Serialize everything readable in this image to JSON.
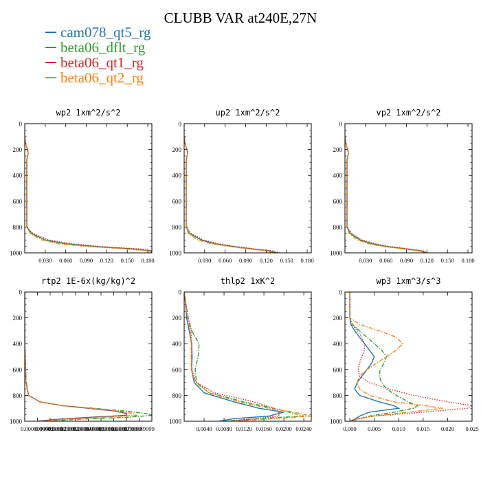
{
  "title": "CLUBB VAR at240E,27N",
  "legend": [
    {
      "name": "cam078_qt5_rg",
      "color": "#1f77b4",
      "dash": "solid"
    },
    {
      "name": "beta06_dflt_rg",
      "color": "#2ca02c",
      "dash": "dashdot"
    },
    {
      "name": "beta06_qt1_rg",
      "color": "#d62728",
      "dash": "dot"
    },
    {
      "name": "beta06_qt2_rg",
      "color": "#ff7f0e",
      "dash": "dashdot"
    }
  ],
  "chart_data": [
    {
      "type": "line",
      "title": "wp2  1xm^2/s^2",
      "xlim": [
        0,
        0.186
      ],
      "ylim": [
        1000,
        0
      ],
      "y_inverted": true,
      "xticks": [
        0.03,
        0.06,
        0.09,
        0.12,
        0.15,
        0.18
      ],
      "xtick_labels": [
        "0.030",
        "0.060",
        "0.090",
        "0.120",
        "0.150",
        "0.180"
      ],
      "yticks": [
        0,
        200,
        400,
        600,
        800,
        1000
      ],
      "ytick_labels": [
        "0",
        "200",
        "400",
        "600",
        "800",
        "1000"
      ],
      "y": [
        100,
        150,
        200,
        230,
        280,
        400,
        600,
        800,
        850,
        900,
        930,
        950,
        970,
        985,
        1000
      ],
      "series": [
        {
          "name": "cam078_qt5_rg",
          "values": [
            0.0,
            0.001,
            0.004,
            0.005,
            0.003,
            0.003,
            0.003,
            0.003,
            0.01,
            0.03,
            0.06,
            0.1,
            0.16,
            0.185,
            0.186
          ]
        },
        {
          "name": "beta06_dflt_rg",
          "values": [
            0.0,
            0.001,
            0.004,
            0.005,
            0.003,
            0.003,
            0.003,
            0.003,
            0.01,
            0.03,
            0.06,
            0.1,
            0.16,
            0.185,
            0.186
          ]
        },
        {
          "name": "beta06_qt1_rg",
          "values": [
            0.0,
            0.001,
            0.004,
            0.005,
            0.003,
            0.003,
            0.003,
            0.003,
            0.012,
            0.035,
            0.07,
            0.11,
            0.17,
            0.186,
            0.186
          ]
        },
        {
          "name": "beta06_qt2_rg",
          "values": [
            0.0,
            0.001,
            0.004,
            0.005,
            0.003,
            0.003,
            0.003,
            0.003,
            0.008,
            0.025,
            0.05,
            0.09,
            0.15,
            0.18,
            0.186
          ]
        }
      ]
    },
    {
      "type": "line",
      "title": "up2  1xm^2/s^2",
      "xlim": [
        0,
        0.186
      ],
      "ylim": [
        1000,
        0
      ],
      "y_inverted": true,
      "xticks": [
        0.03,
        0.06,
        0.09,
        0.12,
        0.15,
        0.18
      ],
      "xtick_labels": [
        "0.030",
        "0.060",
        "0.090",
        "0.120",
        "0.150",
        "0.180"
      ],
      "yticks": [
        0,
        200,
        400,
        600,
        800,
        1000
      ],
      "ytick_labels": [
        "0",
        "200",
        "400",
        "600",
        "800",
        "1000"
      ],
      "y": [
        100,
        150,
        200,
        230,
        280,
        400,
        600,
        800,
        850,
        900,
        930,
        950,
        970,
        985,
        1000
      ],
      "series": [
        {
          "name": "cam078_qt5_rg",
          "values": [
            0.0,
            0.001,
            0.004,
            0.005,
            0.003,
            0.003,
            0.003,
            0.003,
            0.008,
            0.025,
            0.045,
            0.07,
            0.1,
            0.125,
            0.135
          ]
        },
        {
          "name": "beta06_dflt_rg",
          "values": [
            0.0,
            0.001,
            0.004,
            0.005,
            0.003,
            0.003,
            0.003,
            0.003,
            0.008,
            0.025,
            0.045,
            0.07,
            0.1,
            0.125,
            0.135
          ]
        },
        {
          "name": "beta06_qt1_rg",
          "values": [
            0.0,
            0.001,
            0.004,
            0.005,
            0.003,
            0.003,
            0.003,
            0.003,
            0.01,
            0.028,
            0.05,
            0.075,
            0.105,
            0.13,
            0.14
          ]
        },
        {
          "name": "beta06_qt2_rg",
          "values": [
            0.0,
            0.001,
            0.004,
            0.005,
            0.003,
            0.003,
            0.003,
            0.003,
            0.006,
            0.02,
            0.04,
            0.065,
            0.095,
            0.12,
            0.13
          ]
        }
      ]
    },
    {
      "type": "line",
      "title": "vp2  1xm^2/s^2",
      "xlim": [
        0,
        0.186
      ],
      "ylim": [
        1000,
        0
      ],
      "y_inverted": true,
      "xticks": [
        0.03,
        0.06,
        0.09,
        0.12,
        0.15,
        0.18
      ],
      "xtick_labels": [
        "0.030",
        "0.060",
        "0.090",
        "0.120",
        "0.150",
        "0.180"
      ],
      "yticks": [
        0,
        200,
        400,
        600,
        800,
        1000
      ],
      "ytick_labels": [
        "0",
        "200",
        "400",
        "600",
        "800",
        "1000"
      ],
      "y": [
        100,
        150,
        200,
        230,
        280,
        400,
        600,
        800,
        850,
        900,
        930,
        950,
        970,
        985,
        1000
      ],
      "series": [
        {
          "name": "cam078_qt5_rg",
          "values": [
            0.0,
            0.001,
            0.004,
            0.005,
            0.003,
            0.003,
            0.003,
            0.003,
            0.008,
            0.022,
            0.04,
            0.06,
            0.09,
            0.112,
            0.12
          ]
        },
        {
          "name": "beta06_dflt_rg",
          "values": [
            0.0,
            0.001,
            0.004,
            0.005,
            0.003,
            0.003,
            0.003,
            0.003,
            0.008,
            0.022,
            0.04,
            0.06,
            0.09,
            0.112,
            0.12
          ]
        },
        {
          "name": "beta06_qt1_rg",
          "values": [
            0.0,
            0.001,
            0.004,
            0.005,
            0.003,
            0.003,
            0.003,
            0.003,
            0.01,
            0.025,
            0.045,
            0.065,
            0.095,
            0.115,
            0.12
          ]
        },
        {
          "name": "beta06_qt2_rg",
          "values": [
            0.0,
            0.001,
            0.004,
            0.005,
            0.003,
            0.003,
            0.003,
            0.003,
            0.006,
            0.018,
            0.035,
            0.055,
            0.085,
            0.108,
            0.118
          ]
        }
      ]
    },
    {
      "type": "line",
      "title": "rtp2  1E-6x(kg/kg)^2",
      "xlim": [
        0,
        9.99999e-05
      ],
      "ylim": [
        1000,
        0
      ],
      "y_inverted": true,
      "xticks": [
        1e-05,
        2e-05,
        3e-05,
        4e-05,
        5e-05,
        6e-05,
        7e-05,
        8e-05,
        9e-05
      ],
      "xtick_labels": [
        "0.0000099999",
        "0.000019999",
        "0.000029999",
        "0.000039999",
        "0.000049999",
        "0.000059999",
        "0.000069999",
        "0.000079999",
        "0.000089999"
      ],
      "yticks": [
        0,
        200,
        400,
        600,
        800,
        1000
      ],
      "ytick_labels": [
        "0",
        "200",
        "400",
        "600",
        "800",
        "1000"
      ],
      "y": [
        0,
        400,
        700,
        800,
        850,
        880,
        900,
        920,
        940,
        955,
        970,
        985,
        1000
      ],
      "series": [
        {
          "name": "cam078_qt5_rg",
          "values": [
            0.0,
            0.0,
            1e-06,
            3e-06,
            1.2e-05,
            3e-05,
            5e-05,
            7e-05,
            8e-05,
            8e-05,
            5e-05,
            2.5e-05,
            1e-05
          ]
        },
        {
          "name": "beta06_dflt_rg",
          "values": [
            0.0,
            0.0,
            1e-06,
            3e-06,
            1.2e-05,
            3e-05,
            5.5e-05,
            7.8e-05,
            9.5e-05,
            0.0001,
            8e-05,
            4e-05,
            2e-05
          ]
        },
        {
          "name": "beta06_qt1_rg",
          "values": [
            0.0,
            0.0,
            1e-06,
            3e-06,
            1.2e-05,
            3e-05,
            5e-05,
            7e-05,
            8e-05,
            8e-05,
            5e-05,
            2.5e-05,
            1e-05
          ]
        },
        {
          "name": "beta06_qt2_rg",
          "values": [
            0.0,
            0.0,
            1e-06,
            3e-06,
            1.2e-05,
            3e-05,
            5.2e-05,
            7.3e-05,
            8.5e-05,
            8.8e-05,
            6e-05,
            3e-05,
            1.2e-05
          ]
        }
      ]
    },
    {
      "type": "line",
      "title": "thlp2  1xK^2",
      "xlim": [
        0,
        0.0255
      ],
      "ylim": [
        1000,
        0
      ],
      "y_inverted": true,
      "xticks": [
        0.004,
        0.008,
        0.012,
        0.016,
        0.02,
        0.024
      ],
      "xtick_labels": [
        "0.0040",
        "0.0080",
        "0.0120",
        "0.0160",
        "0.0200",
        "0.0240"
      ],
      "yticks": [
        0,
        200,
        400,
        600,
        800,
        1000
      ],
      "ytick_labels": [
        "0",
        "200",
        "400",
        "600",
        "800",
        "1000"
      ],
      "y": [
        0,
        100,
        200,
        300,
        400,
        500,
        600,
        700,
        780,
        850,
        900,
        930,
        960,
        980,
        1000
      ],
      "series": [
        {
          "name": "cam078_qt5_rg",
          "values": [
            0.0,
            0.0003,
            0.0005,
            0.001,
            0.0015,
            0.0016,
            0.0015,
            0.002,
            0.004,
            0.01,
            0.015,
            0.02,
            0.017,
            0.01,
            0.007
          ]
        },
        {
          "name": "beta06_dflt_rg",
          "values": [
            0.0,
            0.0004,
            0.0008,
            0.0015,
            0.003,
            0.0028,
            0.0022,
            0.0025,
            0.005,
            0.012,
            0.018,
            0.021,
            0.024,
            0.015,
            0.008
          ]
        },
        {
          "name": "beta06_qt1_rg",
          "values": [
            0.0,
            0.0004,
            0.0008,
            0.0014,
            0.0015,
            0.0015,
            0.0015,
            0.0025,
            0.006,
            0.014,
            0.018,
            0.019,
            0.019,
            0.014,
            0.009
          ]
        },
        {
          "name": "beta06_qt2_rg",
          "values": [
            0.0,
            0.0003,
            0.0007,
            0.0012,
            0.0014,
            0.0014,
            0.0014,
            0.0022,
            0.005,
            0.011,
            0.017,
            0.022,
            0.0255,
            0.018,
            0.01
          ]
        }
      ]
    },
    {
      "type": "line",
      "title": "wp3  1xm^3/s^3",
      "xlim": [
        -0.001,
        0.025
      ],
      "ylim": [
        1000,
        0
      ],
      "y_inverted": true,
      "xticks": [
        0.0,
        0.005,
        0.01,
        0.015,
        0.02,
        0.025
      ],
      "xtick_labels": [
        "0.000",
        "0.005",
        "0.010",
        "0.015",
        "0.020",
        "0.025"
      ],
      "yticks": [
        0,
        200,
        400,
        600,
        800,
        1000
      ],
      "ytick_labels": [
        "0",
        "200",
        "400",
        "600",
        "800",
        "1000"
      ],
      "y": [
        0,
        100,
        200,
        250,
        300,
        350,
        400,
        450,
        500,
        550,
        600,
        650,
        700,
        750,
        800,
        850,
        880,
        900,
        930,
        960,
        985,
        1000
      ],
      "series": [
        {
          "name": "cam078_qt5_rg",
          "values": [
            0.0,
            0.0,
            0.0,
            0.0002,
            0.001,
            0.002,
            0.003,
            0.004,
            0.005,
            0.0045,
            0.0035,
            0.0025,
            0.0015,
            0.001,
            0.002,
            0.006,
            0.009,
            0.01,
            0.004,
            0.002,
            0.001,
            0.0
          ]
        },
        {
          "name": "beta06_dflt_rg",
          "values": [
            0.0,
            0.0,
            0.0,
            0.0005,
            0.002,
            0.0035,
            0.005,
            0.0065,
            0.0075,
            0.007,
            0.0062,
            0.006,
            0.0065,
            0.0075,
            0.0095,
            0.012,
            0.0138,
            0.013,
            0.009,
            0.004,
            0.0015,
            0.0
          ]
        },
        {
          "name": "beta06_qt1_rg",
          "values": [
            0.0,
            0.0,
            0.0,
            0.0005,
            0.0015,
            0.0025,
            0.003,
            0.003,
            0.0025,
            0.002,
            0.0017,
            0.002,
            0.004,
            0.008,
            0.013,
            0.02,
            0.025,
            0.024,
            0.015,
            0.005,
            0.001,
            0.0
          ]
        },
        {
          "name": "beta06_qt2_rg",
          "values": [
            0.0,
            0.0,
            0.0,
            0.002,
            0.006,
            0.0095,
            0.0108,
            0.0095,
            0.0075,
            0.0055,
            0.0035,
            0.002,
            0.0015,
            0.002,
            0.004,
            0.009,
            0.0155,
            0.019,
            0.012,
            0.005,
            0.001,
            0.0
          ]
        }
      ]
    }
  ]
}
